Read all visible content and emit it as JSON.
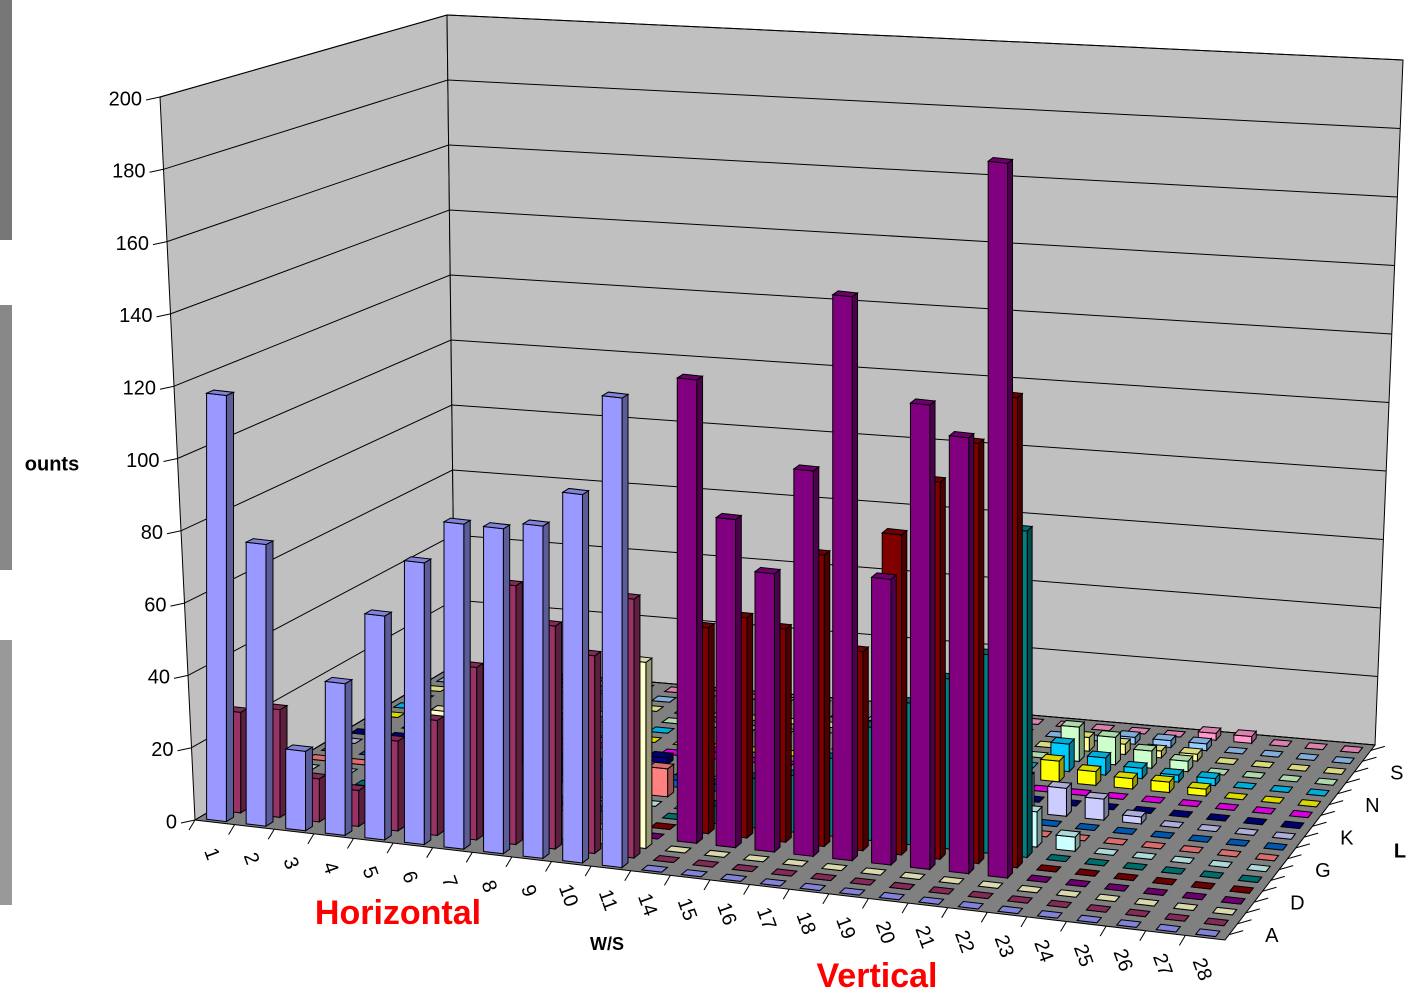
{
  "chart_data": {
    "type": "bar3d",
    "z_axis_title": "ounts",
    "x_axis_title": "W/S",
    "depth_axis_title": "L",
    "annotations": [
      "Horizontal",
      "Vertical"
    ],
    "categories": [
      "1",
      "2",
      "3",
      "4",
      "5",
      "6",
      "7",
      "8",
      "9",
      "10",
      "11",
      "14",
      "15",
      "16",
      "17",
      "18",
      "19",
      "20",
      "21",
      "22",
      "23",
      "24",
      "25",
      "26",
      "27",
      "28"
    ],
    "series": [
      {
        "name": "A",
        "color": "#9999ff",
        "values": [
          118,
          78,
          22,
          42,
          62,
          78,
          90,
          90,
          92,
          102,
          130,
          0,
          0,
          0,
          0,
          0,
          0,
          0,
          0,
          0,
          0,
          0,
          0,
          0,
          0,
          0
        ]
      },
      {
        "name": null,
        "color": "#993366",
        "values": [
          28,
          30,
          12,
          10,
          25,
          32,
          48,
          72,
          62,
          55,
          72,
          0,
          0,
          0,
          0,
          0,
          0,
          0,
          0,
          0,
          0,
          0,
          0,
          0,
          0,
          0
        ]
      },
      {
        "name": null,
        "color": "#ffffcc",
        "values": [
          3,
          2,
          4,
          6,
          8,
          32,
          14,
          10,
          8,
          4,
          52,
          0,
          0,
          0,
          0,
          0,
          0,
          0,
          0,
          0,
          0,
          0,
          0,
          0,
          0,
          0
        ]
      },
      {
        "name": "D",
        "color": "#800080",
        "values": [
          0,
          0,
          0,
          0,
          12,
          0,
          0,
          0,
          0,
          0,
          0,
          130,
          92,
          78,
          108,
          158,
          80,
          130,
          122,
          200,
          0,
          0,
          0,
          0,
          0,
          0
        ]
      },
      {
        "name": null,
        "color": "#800000",
        "values": [
          0,
          0,
          0,
          0,
          0,
          0,
          0,
          0,
          0,
          0,
          0,
          58,
          62,
          60,
          82,
          56,
          90,
          106,
          118,
          132,
          0,
          0,
          0,
          0,
          0,
          0
        ]
      },
      {
        "name": null,
        "color": "#008080",
        "values": [
          0,
          0,
          0,
          0,
          0,
          0,
          0,
          0,
          0,
          0,
          0,
          5,
          14,
          16,
          22,
          32,
          40,
          48,
          56,
          92,
          0,
          0,
          0,
          0,
          0,
          0
        ]
      },
      {
        "name": "G",
        "color": "#ccffff",
        "values": [
          0,
          0,
          3,
          0,
          0,
          0,
          8,
          4,
          0,
          0,
          0,
          0,
          0,
          0,
          18,
          12,
          20,
          15,
          12,
          10,
          4,
          0,
          0,
          0,
          0,
          0
        ]
      },
      {
        "name": null,
        "color": "#ff8080",
        "values": [
          0,
          0,
          0,
          0,
          0,
          10,
          12,
          14,
          10,
          8,
          6,
          0,
          0,
          0,
          0,
          0,
          0,
          0,
          0,
          0,
          0,
          0,
          0,
          0,
          0,
          0
        ]
      },
      {
        "name": null,
        "color": "#0066cc",
        "values": [
          0,
          0,
          0,
          0,
          2,
          3,
          5,
          4,
          3,
          2,
          2,
          0,
          0,
          0,
          0,
          0,
          0,
          0,
          0,
          0,
          0,
          0,
          0,
          0,
          0,
          0
        ]
      },
      {
        "name": "K",
        "color": "#ccccff",
        "values": [
          0,
          0,
          0,
          0,
          0,
          2,
          3,
          2,
          2,
          0,
          0,
          0,
          0,
          0,
          0,
          0,
          0,
          12,
          10,
          8,
          6,
          2,
          0,
          0,
          0,
          0
        ]
      },
      {
        "name": null,
        "color": "#000080",
        "values": [
          0,
          0,
          0,
          0,
          0,
          0,
          2,
          2,
          2,
          0,
          0,
          0,
          0,
          0,
          0,
          0,
          2,
          0,
          0,
          0,
          0,
          0,
          0,
          0,
          0,
          0
        ]
      },
      {
        "name": null,
        "color": "#ff00ff",
        "values": [
          0,
          0,
          0,
          0,
          0,
          0,
          0,
          2,
          0,
          2,
          0,
          0,
          0,
          0,
          0,
          0,
          0,
          0,
          0,
          0,
          0,
          0,
          0,
          0,
          0,
          0
        ]
      },
      {
        "name": "N",
        "color": "#ffff00",
        "values": [
          0,
          0,
          0,
          0,
          0,
          0,
          0,
          0,
          0,
          0,
          0,
          0,
          0,
          0,
          0,
          0,
          0,
          5,
          6,
          4,
          3,
          3,
          2,
          0,
          0,
          0
        ]
      },
      {
        "name": null,
        "color": "#00ccff",
        "values": [
          0,
          0,
          0,
          0,
          0,
          0,
          0,
          0,
          0,
          0,
          0,
          0,
          0,
          0,
          0,
          0,
          0,
          0,
          8,
          5,
          3,
          2,
          2,
          0,
          0,
          0
        ]
      },
      {
        "name": null,
        "color": "#ccffcc",
        "values": [
          0,
          0,
          0,
          0,
          0,
          0,
          0,
          0,
          0,
          0,
          0,
          0,
          0,
          0,
          0,
          0,
          0,
          0,
          10,
          8,
          5,
          3,
          0,
          0,
          0,
          0
        ]
      },
      {
        "name": "S",
        "color": "#ffff99",
        "values": [
          0,
          0,
          0,
          0,
          0,
          0,
          0,
          0,
          0,
          0,
          0,
          0,
          0,
          0,
          0,
          0,
          0,
          0,
          4,
          3,
          2,
          2,
          0,
          0,
          0,
          0
        ]
      },
      {
        "name": null,
        "color": "#99ccff",
        "values": [
          0,
          0,
          0,
          0,
          0,
          0,
          0,
          0,
          0,
          0,
          0,
          0,
          0,
          0,
          0,
          0,
          0,
          0,
          0,
          2,
          2,
          2,
          0,
          0,
          0,
          0
        ]
      },
      {
        "name": null,
        "color": "#ff99cc",
        "values": [
          0,
          0,
          0,
          0,
          0,
          0,
          0,
          0,
          0,
          0,
          0,
          0,
          0,
          0,
          0,
          0,
          0,
          0,
          0,
          0,
          0,
          2,
          2,
          0,
          0,
          0
        ]
      }
    ],
    "ylim": [
      0,
      200
    ],
    "yticks": [
      0,
      20,
      40,
      60,
      80,
      100,
      120,
      140,
      160,
      180,
      200
    ],
    "grid": true
  }
}
